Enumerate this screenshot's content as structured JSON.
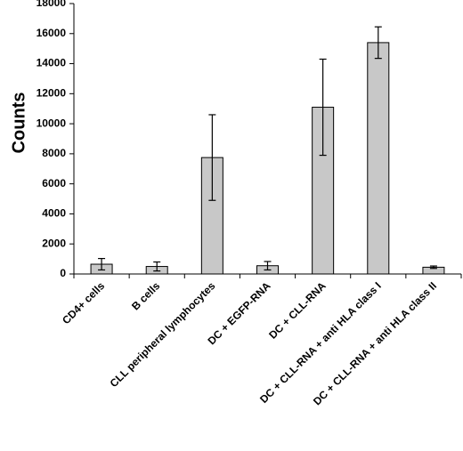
{
  "chart_data": {
    "type": "bar",
    "title": "",
    "xlabel": "",
    "ylabel": "Counts",
    "ylim": [
      0,
      18000
    ],
    "yticks": [
      0,
      2000,
      4000,
      6000,
      8000,
      10000,
      12000,
      14000,
      16000,
      18000
    ],
    "categories": [
      "CD4+ cells",
      "B cells",
      "CLL peripheral lymphocytes",
      "DC + EGFP-RNA",
      "DC + CLL-RNA",
      "DC + CLL-RNA + anti HLA class I",
      "DC + CLL-RNA + anti HLA class II"
    ],
    "values": [
      650,
      500,
      7750,
      550,
      11100,
      15400,
      450
    ],
    "errors": [
      380,
      300,
      2850,
      280,
      3200,
      1050,
      80
    ],
    "grid": false,
    "legend": "none",
    "bar_color": "#c8c8c8",
    "bar_edge_color": "#000000"
  }
}
